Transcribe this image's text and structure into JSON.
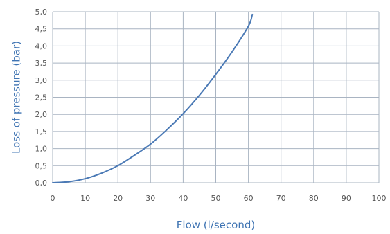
{
  "chart_data": {
    "type": "line",
    "title": "",
    "xlabel": "Flow (l/second)",
    "ylabel": "Loss of pressure (bar)",
    "xlim": [
      0,
      100
    ],
    "ylim": [
      0,
      5
    ],
    "x_ticks": [
      "0",
      "10",
      "20",
      "30",
      "40",
      "50",
      "60",
      "70",
      "80",
      "90",
      "100"
    ],
    "y_ticks": [
      "0,0",
      "0,5",
      "1,0",
      "1,5",
      "2,0",
      "2,5",
      "3,0",
      "3,5",
      "4,0",
      "4,5",
      "5,0"
    ],
    "x_tick_values": [
      0,
      10,
      20,
      30,
      40,
      50,
      60,
      70,
      80,
      90,
      100
    ],
    "y_tick_values": [
      0,
      0.5,
      1.0,
      1.5,
      2.0,
      2.5,
      3.0,
      3.5,
      4.0,
      4.5,
      5.0
    ],
    "grid": true,
    "series": [
      {
        "name": "",
        "x": [
          0,
          5,
          10,
          15,
          20,
          25,
          30,
          35,
          40,
          45,
          50,
          55,
          60,
          61.2
        ],
        "y": [
          0,
          0.03,
          0.12,
          0.28,
          0.5,
          0.8,
          1.13,
          1.55,
          2.02,
          2.56,
          3.17,
          3.83,
          4.58,
          4.92
        ]
      }
    ],
    "colors": {
      "line": "#4a79b5",
      "grid": "#a9b4c2",
      "tick_label": "#555555",
      "axis_title": "#3f74b3"
    }
  }
}
